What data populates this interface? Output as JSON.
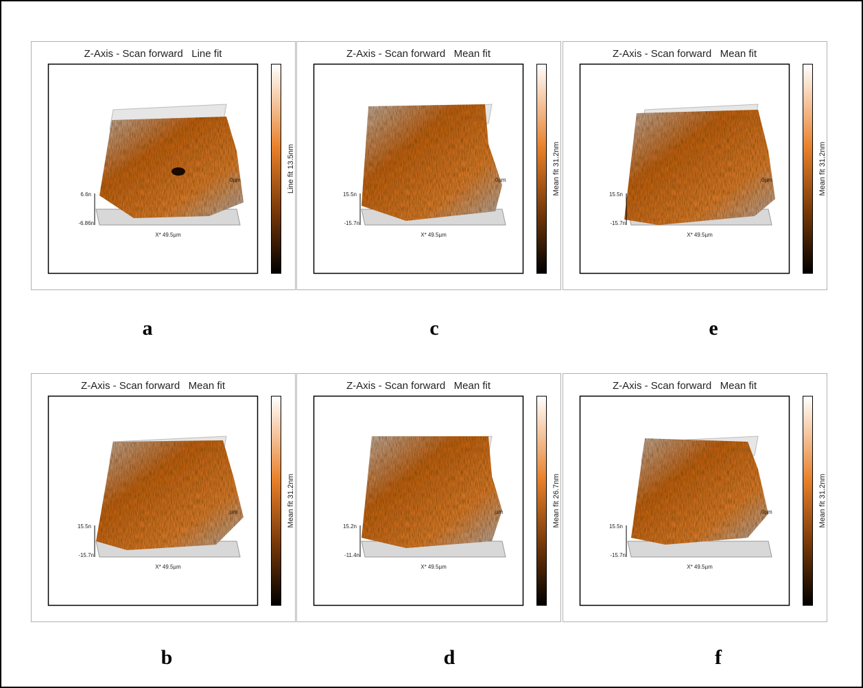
{
  "panels": [
    {
      "letter": "a",
      "title": "Z-Axis - Scan forward   Line fit",
      "colorbar_label": "Line fit 13.5nm",
      "z_max": "6.6n",
      "z_min": "-6.86n",
      "y_label": "0µm",
      "x_label": "X* 49.5µm"
    },
    {
      "letter": "c",
      "title": "Z-Axis - Scan forward   Mean fit",
      "colorbar_label": "Mean fit 31.2nm",
      "z_max": "15.5n",
      "z_min": "-15.7n",
      "y_label": "0µm",
      "x_label": "X* 49.5µm"
    },
    {
      "letter": "e",
      "title": "Z-Axis - Scan forward   Mean fit",
      "colorbar_label": "Mean fit 31.2nm",
      "z_max": "15.5n",
      "z_min": "-15.7n",
      "y_label": "0µm",
      "x_label": "X* 49.5µm"
    },
    {
      "letter": "b",
      "title": "Z-Axis - Scan forward   Mean fit",
      "colorbar_label": "Mean fit 31.2nm",
      "z_max": "15.5n",
      "z_min": "-15.7n",
      "y_label": "µm",
      "x_label": "X* 49.5µm"
    },
    {
      "letter": "d",
      "title": "Z-Axis - Scan forward   Mean fit",
      "colorbar_label": "Mean fit 26.7nm",
      "z_max": "15.2n",
      "z_min": "-11.4n",
      "y_label": "µm",
      "x_label": "X* 49.5µm"
    },
    {
      "letter": "f",
      "title": "Z-Axis - Scan forward   Mean fit",
      "colorbar_label": "Mean fit 31.2nm",
      "z_max": "15.5n",
      "z_min": "-15.7n",
      "y_label": "0µm",
      "x_label": "X* 49.5µm"
    }
  ]
}
